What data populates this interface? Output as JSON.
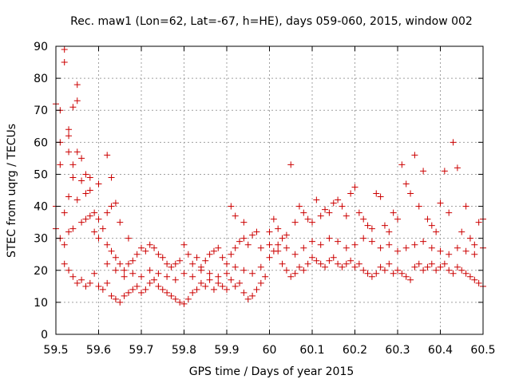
{
  "chart_data": {
    "type": "scatter",
    "title": "Rec. maw1 (Lon=62, Lat=-67, h=HE), days 059-060, 2015, window 002",
    "xlabel": "GPS time / Days of year 2015",
    "ylabel": "STEC from uqrg / TECUs",
    "xlim": [
      59.5,
      60.5
    ],
    "ylim": [
      0,
      90
    ],
    "xticks": [
      "59.5",
      "59.6",
      "59.7",
      "59.8",
      "59.9",
      "60",
      "60.1",
      "60.2",
      "60.3",
      "60.4",
      "60.5"
    ],
    "yticks": [
      "0",
      "10",
      "20",
      "30",
      "40",
      "50",
      "60",
      "70",
      "80",
      "90"
    ],
    "grid": true,
    "marker": "plus",
    "color": "#cc0000",
    "series": [
      {
        "name": "STEC",
        "points": [
          [
            59.5,
            72
          ],
          [
            59.51,
            60
          ],
          [
            59.51,
            53
          ],
          [
            59.52,
            89
          ],
          [
            59.52,
            85
          ],
          [
            59.51,
            70
          ],
          [
            59.53,
            64
          ],
          [
            59.53,
            62
          ],
          [
            59.54,
            71
          ],
          [
            59.55,
            73
          ],
          [
            59.55,
            78
          ],
          [
            59.53,
            57
          ],
          [
            59.55,
            57
          ],
          [
            59.56,
            55
          ],
          [
            59.57,
            50
          ],
          [
            59.58,
            49
          ],
          [
            59.6,
            47
          ],
          [
            59.62,
            56
          ],
          [
            59.63,
            49
          ],
          [
            59.64,
            41
          ],
          [
            59.54,
            49
          ],
          [
            59.56,
            48
          ],
          [
            59.54,
            53
          ],
          [
            59.5,
            40
          ],
          [
            59.52,
            38
          ],
          [
            59.53,
            43
          ],
          [
            59.55,
            42
          ],
          [
            59.57,
            44
          ],
          [
            59.58,
            45
          ],
          [
            59.59,
            38
          ],
          [
            59.6,
            36
          ],
          [
            59.62,
            38
          ],
          [
            59.63,
            40
          ],
          [
            59.65,
            35
          ],
          [
            59.67,
            30
          ],
          [
            59.5,
            33
          ],
          [
            59.51,
            30
          ],
          [
            59.52,
            28
          ],
          [
            59.53,
            32
          ],
          [
            59.54,
            33
          ],
          [
            59.56,
            35
          ],
          [
            59.57,
            36
          ],
          [
            59.58,
            37
          ],
          [
            59.59,
            32
          ],
          [
            59.6,
            30
          ],
          [
            59.61,
            33
          ],
          [
            59.62,
            28
          ],
          [
            59.63,
            26
          ],
          [
            59.64,
            24
          ],
          [
            59.65,
            22
          ],
          [
            59.66,
            20
          ],
          [
            59.67,
            22
          ],
          [
            59.68,
            23
          ],
          [
            59.69,
            25
          ],
          [
            59.7,
            27
          ],
          [
            59.71,
            26
          ],
          [
            59.72,
            28
          ],
          [
            59.73,
            27
          ],
          [
            59.74,
            25
          ],
          [
            59.75,
            24
          ],
          [
            59.76,
            22
          ],
          [
            59.77,
            21
          ],
          [
            59.78,
            22
          ],
          [
            59.79,
            23
          ],
          [
            59.8,
            28
          ],
          [
            59.81,
            25
          ],
          [
            59.82,
            22
          ],
          [
            59.83,
            24
          ],
          [
            59.84,
            21
          ],
          [
            59.85,
            23
          ],
          [
            59.86,
            25
          ],
          [
            59.87,
            26
          ],
          [
            59.88,
            27
          ],
          [
            59.89,
            24
          ],
          [
            59.9,
            22
          ],
          [
            59.91,
            25
          ],
          [
            59.92,
            27
          ],
          [
            59.93,
            29
          ],
          [
            59.94,
            30
          ],
          [
            59.95,
            28
          ],
          [
            59.96,
            31
          ],
          [
            59.97,
            32
          ],
          [
            59.98,
            27
          ],
          [
            59.52,
            22
          ],
          [
            59.53,
            20
          ],
          [
            59.54,
            18
          ],
          [
            59.55,
            16
          ],
          [
            59.56,
            17
          ],
          [
            59.57,
            15
          ],
          [
            59.58,
            16
          ],
          [
            59.59,
            19
          ],
          [
            59.6,
            15
          ],
          [
            59.61,
            14
          ],
          [
            59.62,
            16
          ],
          [
            59.63,
            12
          ],
          [
            59.64,
            11
          ],
          [
            59.65,
            10
          ],
          [
            59.66,
            12
          ],
          [
            59.67,
            13
          ],
          [
            59.68,
            14
          ],
          [
            59.69,
            15
          ],
          [
            59.7,
            13
          ],
          [
            59.71,
            14
          ],
          [
            59.72,
            16
          ],
          [
            59.73,
            17
          ],
          [
            59.74,
            15
          ],
          [
            59.75,
            14
          ],
          [
            59.76,
            13
          ],
          [
            59.77,
            12
          ],
          [
            59.78,
            11
          ],
          [
            59.79,
            10
          ],
          [
            59.8,
            9.5
          ],
          [
            59.81,
            11
          ],
          [
            59.82,
            13
          ],
          [
            59.83,
            14
          ],
          [
            59.84,
            16
          ],
          [
            59.85,
            15
          ],
          [
            59.86,
            17
          ],
          [
            59.87,
            14
          ],
          [
            59.88,
            16
          ],
          [
            59.89,
            15
          ],
          [
            59.9,
            14
          ],
          [
            59.91,
            17
          ],
          [
            59.92,
            15
          ],
          [
            59.93,
            16
          ],
          [
            59.94,
            13
          ],
          [
            59.95,
            11
          ],
          [
            59.96,
            12
          ],
          [
            59.97,
            14
          ],
          [
            59.98,
            16
          ],
          [
            59.99,
            18
          ],
          [
            59.62,
            22
          ],
          [
            59.64,
            20
          ],
          [
            59.66,
            18
          ],
          [
            59.68,
            19
          ],
          [
            59.7,
            18
          ],
          [
            59.72,
            20
          ],
          [
            59.74,
            19
          ],
          [
            59.76,
            18
          ],
          [
            59.78,
            17
          ],
          [
            59.8,
            19
          ],
          [
            59.82,
            18
          ],
          [
            59.84,
            20
          ],
          [
            59.86,
            19
          ],
          [
            59.88,
            18
          ],
          [
            59.9,
            19
          ],
          [
            59.92,
            21
          ],
          [
            59.94,
            20
          ],
          [
            59.96,
            19
          ],
          [
            59.98,
            21
          ],
          [
            59.91,
            40
          ],
          [
            59.92,
            37
          ],
          [
            59.94,
            35
          ],
          [
            60.0,
            24
          ],
          [
            60.01,
            26
          ],
          [
            60.02,
            28
          ],
          [
            60.03,
            22
          ],
          [
            60.04,
            20
          ],
          [
            60.05,
            18
          ],
          [
            60.06,
            19
          ],
          [
            60.07,
            21
          ],
          [
            60.08,
            20
          ],
          [
            60.09,
            22
          ],
          [
            60.1,
            24
          ],
          [
            60.11,
            23
          ],
          [
            60.12,
            22
          ],
          [
            60.13,
            21
          ],
          [
            60.14,
            23
          ],
          [
            60.15,
            24
          ],
          [
            60.16,
            22
          ],
          [
            60.17,
            21
          ],
          [
            60.18,
            22
          ],
          [
            60.19,
            23
          ],
          [
            60.2,
            21
          ],
          [
            60.21,
            22
          ],
          [
            60.22,
            20
          ],
          [
            60.23,
            19
          ],
          [
            60.24,
            18
          ],
          [
            60.25,
            19
          ],
          [
            60.26,
            21
          ],
          [
            60.27,
            20
          ],
          [
            60.28,
            22
          ],
          [
            60.29,
            19
          ],
          [
            60.3,
            20
          ],
          [
            60.31,
            19
          ],
          [
            60.32,
            18
          ],
          [
            60.33,
            17
          ],
          [
            60.34,
            21
          ],
          [
            60.35,
            22
          ],
          [
            60.36,
            20
          ],
          [
            60.37,
            21
          ],
          [
            60.38,
            22
          ],
          [
            60.39,
            20
          ],
          [
            60.4,
            21
          ],
          [
            60.41,
            22
          ],
          [
            60.42,
            20
          ],
          [
            60.43,
            19
          ],
          [
            60.44,
            21
          ],
          [
            60.45,
            20
          ],
          [
            60.46,
            19
          ],
          [
            60.47,
            18
          ],
          [
            60.48,
            17
          ],
          [
            60.49,
            16
          ],
          [
            60.5,
            15
          ],
          [
            60.0,
            32
          ],
          [
            60.01,
            36
          ],
          [
            60.02,
            33
          ],
          [
            60.03,
            30
          ],
          [
            60.04,
            31
          ],
          [
            60.05,
            53
          ],
          [
            60.06,
            35
          ],
          [
            60.07,
            40
          ],
          [
            60.08,
            38
          ],
          [
            60.09,
            36
          ],
          [
            60.1,
            35
          ],
          [
            60.11,
            42
          ],
          [
            60.12,
            37
          ],
          [
            60.13,
            39
          ],
          [
            60.14,
            38
          ],
          [
            60.15,
            41
          ],
          [
            60.16,
            42
          ],
          [
            60.17,
            40
          ],
          [
            60.18,
            37
          ],
          [
            60.19,
            44
          ],
          [
            60.2,
            46
          ],
          [
            60.21,
            38
          ],
          [
            60.22,
            36
          ],
          [
            60.23,
            34
          ],
          [
            60.24,
            33
          ],
          [
            60.25,
            44
          ],
          [
            60.26,
            43
          ],
          [
            60.27,
            34
          ],
          [
            60.28,
            32
          ],
          [
            60.29,
            38
          ],
          [
            60.3,
            36
          ],
          [
            60.31,
            53
          ],
          [
            60.32,
            47
          ],
          [
            60.33,
            44
          ],
          [
            60.34,
            56
          ],
          [
            60.35,
            40
          ],
          [
            60.36,
            51
          ],
          [
            60.37,
            36
          ],
          [
            60.38,
            34
          ],
          [
            60.39,
            32
          ],
          [
            60.4,
            41
          ],
          [
            60.41,
            51
          ],
          [
            60.42,
            38
          ],
          [
            60.43,
            60
          ],
          [
            60.44,
            52
          ],
          [
            60.45,
            32
          ],
          [
            60.46,
            40
          ],
          [
            60.47,
            30
          ],
          [
            60.48,
            28
          ],
          [
            60.49,
            35
          ],
          [
            60.5,
            36
          ],
          [
            60.0,
            28
          ],
          [
            60.02,
            26
          ],
          [
            60.04,
            27
          ],
          [
            60.06,
            25
          ],
          [
            60.08,
            27
          ],
          [
            60.1,
            29
          ],
          [
            60.12,
            28
          ],
          [
            60.14,
            30
          ],
          [
            60.16,
            29
          ],
          [
            60.18,
            27
          ],
          [
            60.2,
            28
          ],
          [
            60.22,
            30
          ],
          [
            60.24,
            29
          ],
          [
            60.26,
            27
          ],
          [
            60.28,
            28
          ],
          [
            60.3,
            26
          ],
          [
            60.32,
            27
          ],
          [
            60.34,
            28
          ],
          [
            60.36,
            29
          ],
          [
            60.38,
            27
          ],
          [
            60.4,
            26
          ],
          [
            60.42,
            25
          ],
          [
            60.44,
            27
          ],
          [
            60.46,
            26
          ],
          [
            60.48,
            25
          ],
          [
            60.5,
            27
          ]
        ]
      }
    ]
  }
}
